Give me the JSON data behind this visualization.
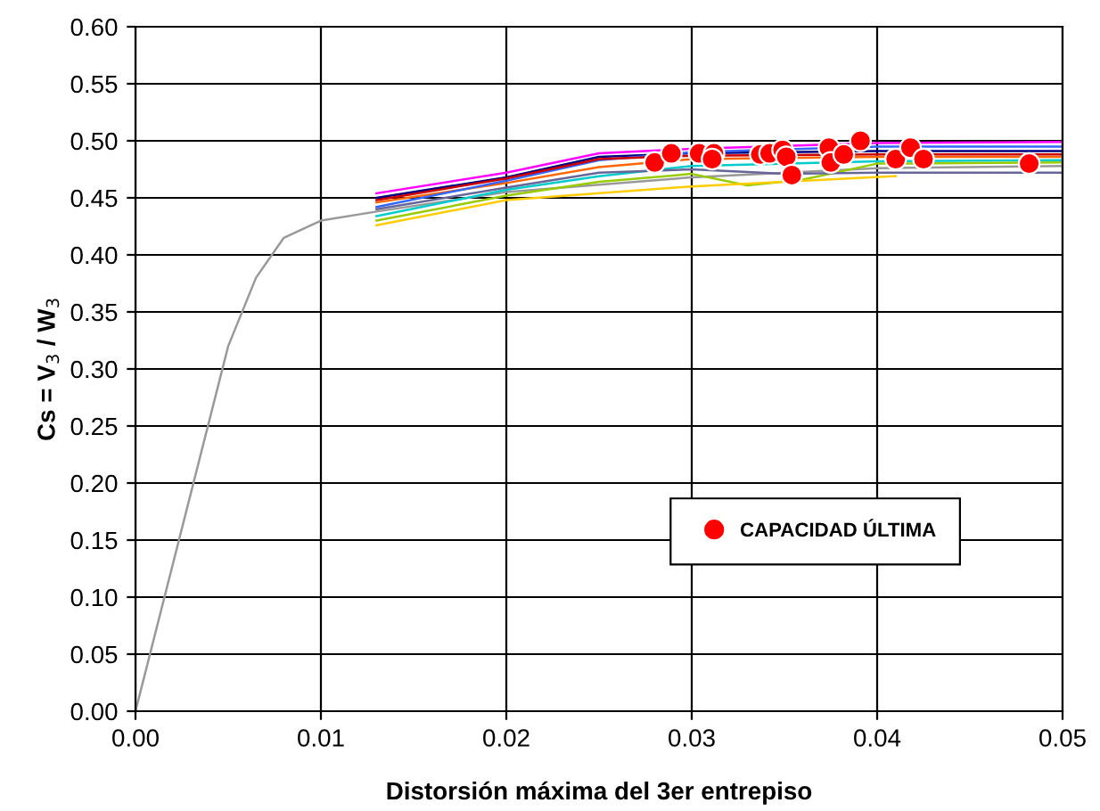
{
  "chart_data": {
    "type": "line",
    "xlabel": "Distorsión máxima del 3er entrepiso",
    "ylabel": "Cs = V$_{3}$ / W$_{3}$",
    "xlim": [
      0,
      0.05
    ],
    "ylim": [
      0,
      0.6
    ],
    "xticks": [
      {
        "value": 0,
        "label": "0.00"
      },
      {
        "value": 0.01,
        "label": "0.01"
      },
      {
        "value": 0.02,
        "label": "0.02"
      },
      {
        "value": 0.03,
        "label": "0.03"
      },
      {
        "value": 0.04,
        "label": "0.04"
      },
      {
        "value": 0.05,
        "label": "0.05"
      }
    ],
    "yticks": [
      {
        "value": 0,
        "label": "0.00"
      },
      {
        "value": 0.05,
        "label": "0.05"
      },
      {
        "value": 0.1,
        "label": "0.10"
      },
      {
        "value": 0.15,
        "label": "0.15"
      },
      {
        "value": 0.2,
        "label": "0.20"
      },
      {
        "value": 0.25,
        "label": "0.25"
      },
      {
        "value": 0.3,
        "label": "0.30"
      },
      {
        "value": 0.35,
        "label": "0.35"
      },
      {
        "value": 0.4,
        "label": "0.40"
      },
      {
        "value": 0.45,
        "label": "0.45"
      },
      {
        "value": 0.5,
        "label": "0.50"
      },
      {
        "value": 0.55,
        "label": "0.55"
      },
      {
        "value": 0.6,
        "label": "0.60"
      }
    ],
    "grid": true,
    "legend": "lower right",
    "series": [
      {
        "color": "#999999",
        "x": [
          0,
          0.005,
          0.0065,
          0.008,
          0.01,
          0.013,
          0.02,
          0.03,
          0.04,
          0.05
        ],
        "values": [
          0,
          0.32,
          0.38,
          0.415,
          0.43,
          0.438,
          0.455,
          0.468,
          0.476,
          0.478
        ]
      },
      {
        "color": "#ff00ff",
        "x": [
          0.013,
          0.02,
          0.025,
          0.03,
          0.04,
          0.05
        ],
        "values": [
          0.454,
          0.472,
          0.489,
          0.493,
          0.498,
          0.499
        ]
      },
      {
        "color": "#000080",
        "x": [
          0.013,
          0.02,
          0.025,
          0.03,
          0.04,
          0.05
        ],
        "values": [
          0.45,
          0.468,
          0.486,
          0.489,
          0.491,
          0.491
        ]
      },
      {
        "color": "#ff6600",
        "x": [
          0.013,
          0.02,
          0.025,
          0.03,
          0.04,
          0.05
        ],
        "values": [
          0.446,
          0.463,
          0.477,
          0.484,
          0.486,
          0.486
        ]
      },
      {
        "color": "#00cccc",
        "x": [
          0.013,
          0.02,
          0.025,
          0.03,
          0.04,
          0.05
        ],
        "values": [
          0.434,
          0.457,
          0.469,
          0.478,
          0.482,
          0.483
        ]
      },
      {
        "color": "#3366ff",
        "x": [
          0.013,
          0.02,
          0.025,
          0.03,
          0.04,
          0.05
        ],
        "values": [
          0.442,
          0.465,
          0.483,
          0.49,
          0.495,
          0.495
        ]
      },
      {
        "color": "#99cc00",
        "x": [
          0.013,
          0.02,
          0.025,
          0.03,
          0.033,
          0.036,
          0.04,
          0.05
        ],
        "values": [
          0.43,
          0.452,
          0.464,
          0.471,
          0.461,
          0.466,
          0.48,
          0.481
        ]
      },
      {
        "color": "#666699",
        "x": [
          0.013,
          0.02,
          0.025,
          0.03,
          0.035,
          0.04,
          0.05
        ],
        "values": [
          0.44,
          0.459,
          0.472,
          0.475,
          0.471,
          0.472,
          0.472
        ]
      },
      {
        "color": "#ffcc00",
        "x": [
          0.013,
          0.02,
          0.03,
          0.041
        ],
        "values": [
          0.426,
          0.448,
          0.46,
          0.469
        ]
      },
      {
        "color": "#cc0000",
        "x": [
          0.013,
          0.02,
          0.025,
          0.03,
          0.04,
          0.05
        ],
        "values": [
          0.448,
          0.467,
          0.484,
          0.487,
          0.488,
          0.488
        ]
      },
      {
        "type": "scatter",
        "name": "CAPACIDAD ÚLTIMA",
        "color": "#ff0000",
        "marker": "circle",
        "x": [
          0.028,
          0.0289,
          0.0304,
          0.0312,
          0.0311,
          0.0337,
          0.0342,
          0.0349,
          0.0351,
          0.0354,
          0.0374,
          0.0375,
          0.0382,
          0.0391,
          0.041,
          0.0418,
          0.0425,
          0.0482
        ],
        "values": [
          0.481,
          0.489,
          0.489,
          0.489,
          0.484,
          0.488,
          0.489,
          0.492,
          0.486,
          0.47,
          0.494,
          0.481,
          0.488,
          0.5,
          0.484,
          0.494,
          0.484,
          0.48
        ]
      }
    ]
  }
}
